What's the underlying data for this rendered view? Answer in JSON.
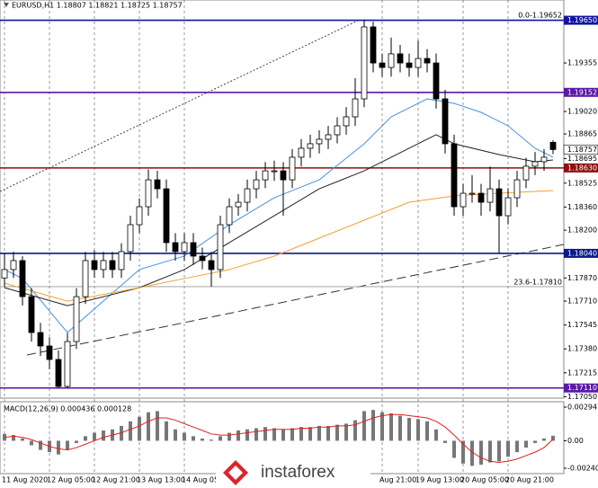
{
  "chart_data": {
    "type": "candlestick",
    "title": "EURUSD,H1  1.18807 1.18821 1.18725 1.18757",
    "categories": [
      "11 Aug 2020",
      null,
      null,
      null,
      null,
      "12 Aug 05:00",
      null,
      null,
      null,
      null,
      "12 Aug 21:00",
      null,
      null,
      null,
      null,
      "13 Aug 13:00",
      null,
      null,
      null,
      null,
      "14 Aug 05",
      null,
      null,
      null,
      null,
      null,
      null,
      null,
      null,
      null,
      null,
      null,
      null,
      null,
      null,
      null,
      null,
      null,
      null,
      null,
      null,
      null,
      "Aug 21:00",
      null,
      null,
      null,
      "19 Aug 13:00",
      null,
      null,
      null,
      null,
      "20 Aug 05:00",
      null,
      null,
      null,
      null,
      "20 Aug 21:00",
      null,
      null,
      null,
      null,
      null
    ],
    "open": [
      1.1787,
      1.17928,
      1.1799,
      1.17741,
      1.17493,
      1.174,
      1.17307,
      1.17121,
      1.17431,
      1.17741,
      1.1799,
      1.17928,
      1.1799,
      1.17928,
      1.18052,
      1.18238,
      1.18362,
      1.18548,
      1.18486,
      1.18114,
      1.18052,
      1.18114,
      1.18021,
      1.1799,
      1.17928,
      1.18238,
      1.18362,
      1.18393,
      1.18486,
      1.18548,
      1.1861,
      1.1861,
      1.18548,
      1.18704,
      1.18766,
      1.18797,
      1.18828,
      1.18859,
      1.18921,
      1.18983,
      1.19107,
      1.19604,
      1.19355,
      1.19324,
      1.19418,
      1.19355,
      1.19324,
      1.19386,
      1.19355,
      1.19107,
      1.18797,
      1.18362,
      1.18455,
      1.18455,
      1.18393,
      1.18486,
      1.183,
      1.18424,
      1.18548,
      1.18642,
      1.18673,
      1.18807
    ],
    "high": [
      1.1804,
      1.1805,
      1.1802,
      1.178,
      1.1756,
      1.1746,
      1.1737,
      1.1749,
      1.178,
      1.1805,
      1.1806,
      1.1805,
      1.1805,
      1.1811,
      1.183,
      1.1842,
      1.1862,
      1.1861,
      1.1855,
      1.1818,
      1.1818,
      1.1818,
      1.1808,
      1.1805,
      1.183,
      1.1842,
      1.1845,
      1.1855,
      1.1861,
      1.1867,
      1.1868,
      1.1867,
      1.1876,
      1.1883,
      1.1886,
      1.1889,
      1.1892,
      1.1898,
      1.1905,
      1.1925,
      1.19652,
      1.1964,
      1.1942,
      1.1953,
      1.1948,
      1.1942,
      1.1951,
      1.1945,
      1.1942,
      1.1917,
      1.1886,
      1.1852,
      1.1858,
      1.1852,
      1.1864,
      1.1855,
      1.1849,
      1.1861,
      1.187,
      1.1874,
      1.1876,
      1.18821
    ],
    "low": [
      1.1781,
      1.1787,
      1.1768,
      1.1743,
      1.1733,
      1.1724,
      1.1711,
      1.1711,
      1.1738,
      1.1769,
      1.1787,
      1.1787,
      1.1787,
      1.1787,
      1.1799,
      1.1818,
      1.183,
      1.1842,
      1.1805,
      1.1799,
      1.1799,
      1.1796,
      1.1793,
      1.1781,
      1.1787,
      1.1818,
      1.183,
      1.1833,
      1.1842,
      1.1849,
      1.1854,
      1.183,
      1.1849,
      1.1864,
      1.187,
      1.1873,
      1.1876,
      1.188,
      1.1886,
      1.1892,
      1.1905,
      1.1929,
      1.1926,
      1.1926,
      1.1929,
      1.1926,
      1.1926,
      1.1929,
      1.1904,
      1.1873,
      1.183,
      1.183,
      1.1839,
      1.183,
      1.1833,
      1.1804,
      1.1824,
      1.1836,
      1.1849,
      1.1858,
      1.1861,
      1.18725
    ],
    "close": [
      1.17928,
      1.1799,
      1.17741,
      1.17493,
      1.174,
      1.17307,
      1.17121,
      1.17431,
      1.17741,
      1.1799,
      1.17928,
      1.1799,
      1.17928,
      1.18052,
      1.18238,
      1.18362,
      1.18548,
      1.18486,
      1.18114,
      1.18052,
      1.18114,
      1.18021,
      1.1799,
      1.17928,
      1.18238,
      1.18362,
      1.18393,
      1.18486,
      1.18548,
      1.1861,
      1.1861,
      1.18548,
      1.18704,
      1.18766,
      1.18797,
      1.18828,
      1.18859,
      1.18921,
      1.18983,
      1.19107,
      1.19604,
      1.19355,
      1.19324,
      1.19418,
      1.19355,
      1.19324,
      1.19386,
      1.19355,
      1.19107,
      1.18797,
      1.18362,
      1.18455,
      1.18455,
      1.18393,
      1.18486,
      1.183,
      1.18424,
      1.18548,
      1.18642,
      1.18673,
      1.18704,
      1.18757
    ],
    "ylim": [
      1.1704,
      1.1979
    ],
    "yticks": [
      {
        "value": 1.19355,
        "label": "1.19355"
      },
      {
        "value": 1.1902,
        "label": "1.19020"
      },
      {
        "value": 1.18865,
        "label": "1.18865"
      },
      {
        "value": 1.18695,
        "label": "1.18695"
      },
      {
        "value": 1.18525,
        "label": "1.18525"
      },
      {
        "value": 1.1836,
        "label": "1.18360"
      },
      {
        "value": 1.182,
        "label": "1.18200"
      },
      {
        "value": 1.1787,
        "label": "1.17870"
      },
      {
        "value": 1.1771,
        "label": "1.17710"
      },
      {
        "value": 1.17545,
        "label": "1.17545"
      },
      {
        "value": 1.1738,
        "label": "1.17380"
      },
      {
        "value": 1.17215,
        "label": "1.17215"
      },
      {
        "value": 1.1705,
        "label": "1.17050"
      }
    ],
    "levels": [
      {
        "value": 1.1965,
        "label": "1.19650",
        "color": "#1414a0"
      },
      {
        "value": 1.19152,
        "label": "1.19152",
        "color": "#5a1aa8"
      },
      {
        "value": 1.1863,
        "label": "1.18630",
        "color": "#8b1010"
      },
      {
        "value": 1.1804,
        "label": "1.18040",
        "color": "#0a1a8a"
      },
      {
        "value": 1.1711,
        "label": "1.17110",
        "color": "#5a1aa8"
      }
    ],
    "last": {
      "value": 1.18757,
      "label": "1.18757"
    },
    "fib": [
      {
        "value": 1.19652,
        "label": "0.0-1.19652"
      },
      {
        "value": 1.1781,
        "label": "23.6-1.17810"
      }
    ],
    "indicators": [
      {
        "color": "#4a8fe0",
        "x": [
          0,
          2,
          7,
          15,
          20,
          25,
          30,
          35,
          40,
          43,
          47,
          50,
          53,
          56,
          59,
          61
        ],
        "values": [
          1.17928,
          1.17866,
          1.17493,
          1.17928,
          1.18021,
          1.18238,
          1.18424,
          1.18548,
          1.18797,
          1.18983,
          1.19107,
          1.19076,
          1.19014,
          1.18921,
          1.18766,
          1.18704
        ]
      },
      {
        "color": "#222222",
        "x": [
          0,
          7,
          15,
          20,
          25,
          30,
          35,
          40,
          45,
          48,
          50,
          55,
          59,
          61
        ],
        "values": [
          1.17803,
          1.17679,
          1.17803,
          1.17928,
          1.18114,
          1.183,
          1.18486,
          1.1861,
          1.18766,
          1.18859,
          1.18797,
          1.18722,
          1.18673,
          1.18685
        ]
      },
      {
        "color": "#f0a030",
        "x": [
          0,
          7,
          15,
          20,
          25,
          30,
          35,
          40,
          45,
          50,
          55,
          61
        ],
        "values": [
          1.17834,
          1.1771,
          1.17803,
          1.17866,
          1.17928,
          1.18021,
          1.18145,
          1.18269,
          1.18393,
          1.18437,
          1.18455,
          1.18474
        ]
      }
    ],
    "macd": {
      "title": "MACD(12,26,9) 0.000436 0.000128",
      "ylim": [
        -0.00288,
        0.00342
      ],
      "yticks": [
        {
          "value": 0.002947,
          "label": "0.002947"
        },
        {
          "value": 0,
          "label": "0.00"
        },
        {
          "value": -0.002409,
          "label": "-0.002409"
        }
      ],
      "histogram": [
        0.0006,
        0.0005,
        0.0002,
        -0.0004,
        -0.0008,
        -0.001,
        -0.0012,
        -0.0008,
        -0.0002,
        0.0004,
        0.0007,
        0.0009,
        0.001,
        0.0013,
        0.0017,
        0.0021,
        0.0025,
        0.0026,
        0.0017,
        0.001,
        0.0007,
        0.0004,
        0.0002,
        0.0001,
        0.0004,
        0.0007,
        0.0009,
        0.001,
        0.0011,
        0.0012,
        0.0011,
        0.001,
        0.0011,
        0.0012,
        0.0012,
        0.0013,
        0.0013,
        0.0014,
        0.0015,
        0.0018,
        0.0026,
        0.0027,
        0.0025,
        0.0024,
        0.0022,
        0.002,
        0.0019,
        0.0017,
        0.001,
        -0.0002,
        -0.0015,
        -0.002,
        -0.0022,
        -0.0021,
        -0.0019,
        -0.0018,
        -0.0014,
        -0.001,
        -0.0006,
        -0.0002,
        0.0002,
        0.000436
      ],
      "signal": [
        0.0003,
        0.0004,
        0.0003,
        0.0001,
        -0.0002,
        -0.0005,
        -0.0007,
        -0.0008,
        -0.0006,
        -0.0003,
        0,
        0.0003,
        0.0005,
        0.0007,
        0.001,
        0.0013,
        0.0017,
        0.002,
        0.002,
        0.0018,
        0.0015,
        0.0012,
        0.0009,
        0.0006,
        0.0005,
        0.0005,
        0.0006,
        0.0007,
        0.0008,
        0.0009,
        0.001,
        0.001,
        0.001,
        0.0011,
        0.0011,
        0.0012,
        0.0012,
        0.0013,
        0.0013,
        0.0014,
        0.0017,
        0.002,
        0.0022,
        0.0023,
        0.0023,
        0.0022,
        0.0021,
        0.002,
        0.0017,
        0.0012,
        0.0005,
        -0.0003,
        -0.001,
        -0.0015,
        -0.0018,
        -0.0019,
        -0.0018,
        -0.0016,
        -0.0013,
        -0.001,
        -0.0006,
        0.000128
      ],
      "signal_color": "#e02020",
      "histogram_color": "#777777"
    },
    "watermark": "instaforex"
  }
}
